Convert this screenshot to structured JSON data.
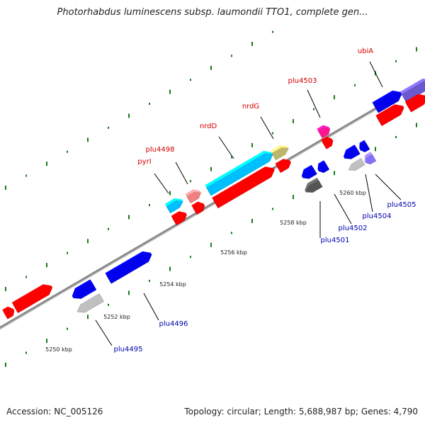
{
  "title": "Photorhabdus luminescens subsp. laumondii TTO1, complete gen...",
  "footer": {
    "accession": "Accession: NC_005126",
    "summary": "Topology: circular; Length: 5,688,987 bp; Genes: 4,790"
  },
  "colors": {
    "backbone": "#8a8a8a",
    "tick": "#1a7a1a",
    "label_forward": "#d40000",
    "label_reverse": "#0000b0",
    "leader": "#000000"
  },
  "scale_labels": [
    "5250 kbp",
    "5252 kbp",
    "5254 kbp",
    "5256 kbp",
    "5258 kbp",
    "5260 kbp"
  ],
  "gene_labels_forward": [
    "pyrI",
    "plu4498",
    "nrdD",
    "nrdG",
    "plu4503",
    "ubiA"
  ],
  "gene_labels_reverse": [
    "plu4495",
    "plu4496",
    "plu4501",
    "plu4502",
    "plu4504",
    "plu4505"
  ],
  "feature_colors": [
    "#ff0000",
    "#0000ee",
    "#00bfff",
    "#f08080",
    "#bdb76b",
    "#ff1493",
    "#c0c0c0",
    "#555555",
    "#6a5acd",
    "#8470ff"
  ]
}
